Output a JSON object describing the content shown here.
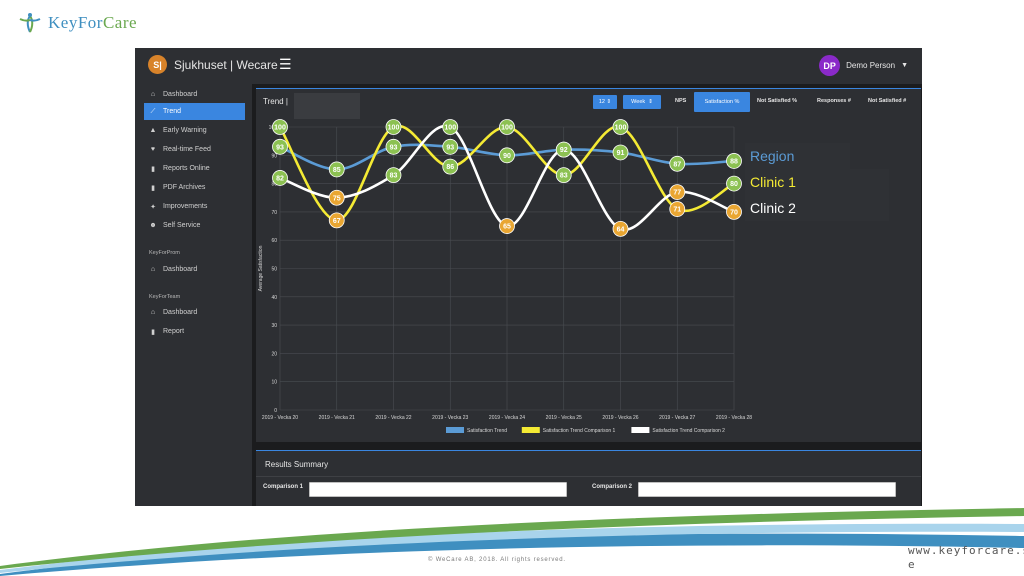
{
  "brand": {
    "name_part1": "KeyFor",
    "name_part2": "Care"
  },
  "app": {
    "site_initials": "S|",
    "site_name": "Sjukhuset | Wecare",
    "user_initials": "DP",
    "user_name": "Demo Person"
  },
  "sidebar": {
    "items": [
      {
        "label": "Dashboard",
        "icon": "home-icon"
      },
      {
        "label": "Trend",
        "icon": "line-chart-icon"
      },
      {
        "label": "Early Warning",
        "icon": "warning-icon"
      },
      {
        "label": "Real-time Feed",
        "icon": "heartbeat-icon"
      },
      {
        "label": "Reports Online",
        "icon": "file-icon"
      },
      {
        "label": "PDF Archives",
        "icon": "file-icon"
      },
      {
        "label": "Improvements",
        "icon": "thumbs-up-icon"
      },
      {
        "label": "Self Service",
        "icon": "users-icon"
      }
    ],
    "section_prom": "KeyForProm",
    "prom_items": [
      {
        "label": "Dashboard",
        "icon": "home-icon"
      }
    ],
    "section_team": "KeyForTeam",
    "team_items": [
      {
        "label": "Dashboard",
        "icon": "home-icon"
      },
      {
        "label": "Report",
        "icon": "file-icon"
      }
    ]
  },
  "trend": {
    "title": "Trend |",
    "period_count": "12",
    "period_unit": "Week",
    "buttons": {
      "nps": "NPS",
      "satisfaction": "Satisfaction %",
      "not_satisfied_pct": "Not Satisfied %",
      "responses": "Responses #",
      "not_satisfied_count": "Not Satisfied #"
    }
  },
  "legend_overlay": [
    "Region",
    "Clinic 1",
    "Clinic 2"
  ],
  "summary": {
    "title": "Results Summary",
    "comparison1": "Comparison 1",
    "comparison2": "Comparison 2"
  },
  "footer": {
    "copyright": "© WeCare AB, 2018. All rights reserved.",
    "url": "www.keyforcare.s e"
  },
  "colors": {
    "region": "#5b9bd5",
    "clinic1": "#f4ea34",
    "clinic2": "#ffffff",
    "accent": "#3a86e0",
    "green_marker": "#8cc152",
    "orange_marker": "#e9a632"
  },
  "chart_data": {
    "type": "line",
    "ylabel": "Average Satisfaction",
    "xlabel": "",
    "ylim": [
      0,
      100
    ],
    "yticks": [
      0,
      10,
      20,
      30,
      40,
      50,
      60,
      70,
      80,
      90,
      100
    ],
    "categories": [
      "2019 - Vecka 20",
      "2019 - Vecka 21",
      "2019 - Vecka 22",
      "2019 - Vecka 23",
      "2019 - Vecka 24",
      "2019 - Vecka 25",
      "2019 - Vecka 26",
      "2019 - Vecka 27",
      "2019 - Vecka 28"
    ],
    "series": [
      {
        "name": "Satisfaction Trend",
        "color": "#5b9bd5",
        "values": [
          93,
          85,
          93,
          93,
          90,
          92,
          91,
          87,
          88
        ]
      },
      {
        "name": "Satisfaction Trend Comparison 1",
        "color": "#f4ea34",
        "values": [
          100,
          67,
          100,
          86,
          100,
          83,
          100,
          71,
          80
        ]
      },
      {
        "name": "Satisfaction Trend Comparison 2",
        "color": "#ffffff",
        "values": [
          82,
          75,
          83,
          100,
          65,
          92,
          64,
          77,
          70
        ]
      }
    ],
    "legend_position": "bottom",
    "grid": true
  }
}
